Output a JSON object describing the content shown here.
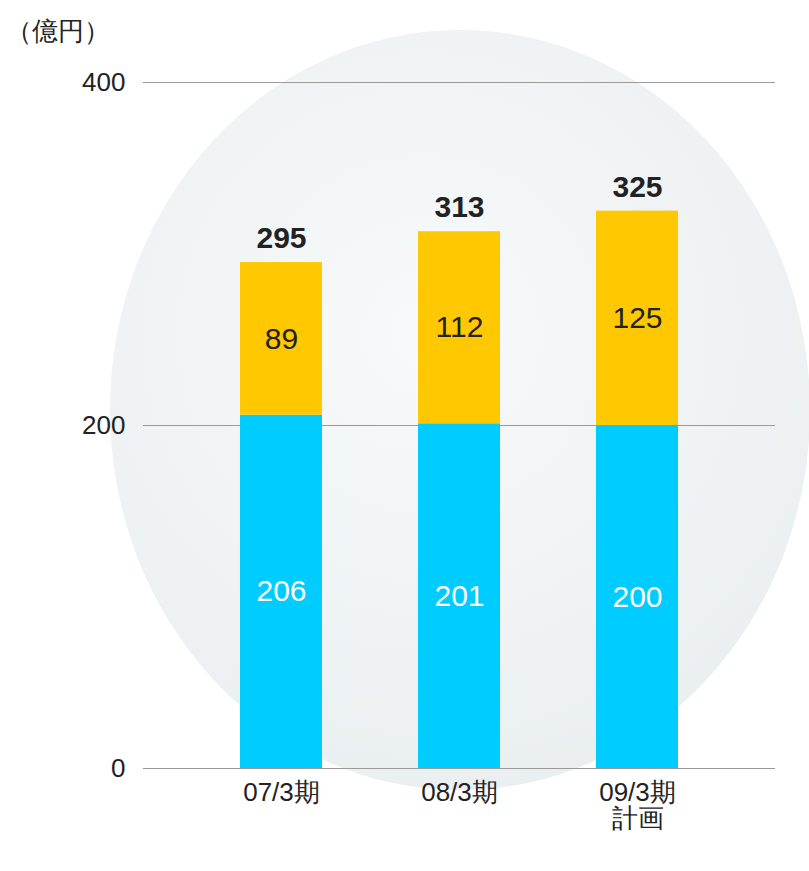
{
  "chart_data": {
    "type": "bar",
    "stacked": true,
    "ylabel": "（億円）",
    "categories": [
      "07/3期",
      "08/3期",
      "09/3期\n計画"
    ],
    "series": [
      {
        "color": "#00ccff",
        "values": [
          206,
          201,
          200
        ]
      },
      {
        "color": "#ffc800",
        "values": [
          89,
          112,
          125
        ]
      }
    ],
    "totals": [
      295,
      313,
      325
    ],
    "ylim": [
      0,
      400
    ],
    "yticks": [
      0,
      200,
      400
    ],
    "grid": true,
    "data_labels": true
  }
}
